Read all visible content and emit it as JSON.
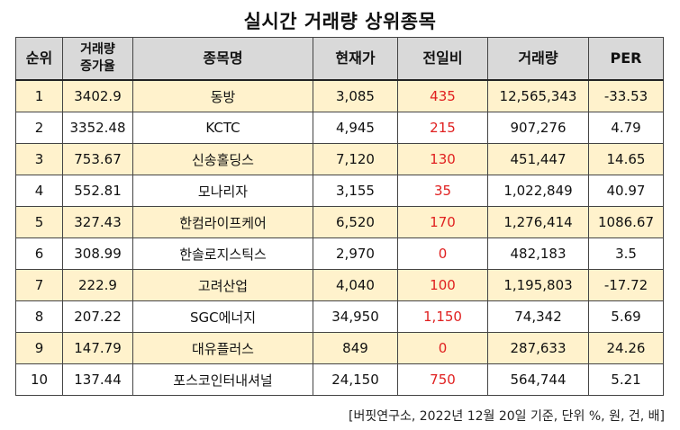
{
  "title": "실시간 거래량 상위종목",
  "headers": [
    "순위",
    "거래량\n증가율",
    "종목명",
    "현재가",
    "전일비",
    "거래량",
    "PER"
  ],
  "rows": [
    [
      "1",
      "3402.9",
      "동방",
      "3,085",
      "435",
      "12,565,343",
      "-33.53"
    ],
    [
      "2",
      "3352.48",
      "KCTC",
      "4,945",
      "215",
      "907,276",
      "4.79"
    ],
    [
      "3",
      "753.67",
      "신송홀딩스",
      "7,120",
      "130",
      "451,447",
      "14.65"
    ],
    [
      "4",
      "552.81",
      "모나리자",
      "3,155",
      "35",
      "1,022,849",
      "40.97"
    ],
    [
      "5",
      "327.43",
      "한컴라이프케어",
      "6,520",
      "170",
      "1,276,414",
      "1086.67"
    ],
    [
      "6",
      "308.99",
      "한솔로지스틱스",
      "2,970",
      "0",
      "482,183",
      "3.5"
    ],
    [
      "7",
      "222.9",
      "고려산업",
      "4,040",
      "100",
      "1,195,803",
      "-17.72"
    ],
    [
      "8",
      "207.22",
      "SGC에너지",
      "34,950",
      "1,150",
      "74,342",
      "5.69"
    ],
    [
      "9",
      "147.79",
      "대유플러스",
      "849",
      "0",
      "287,633",
      "24.26"
    ],
    [
      "10",
      "137.44",
      "포스코인터내셔널",
      "24,150",
      "750",
      "564,744",
      "5.21"
    ]
  ],
  "change_color": "#e02020",
  "row_highlight_color": "#fff2cc",
  "header_color": "#d9d9d9",
  "footnote": "[버핏연구소, 2022년 12월 20일 기준, 단위 %, 원, 건, 배]"
}
